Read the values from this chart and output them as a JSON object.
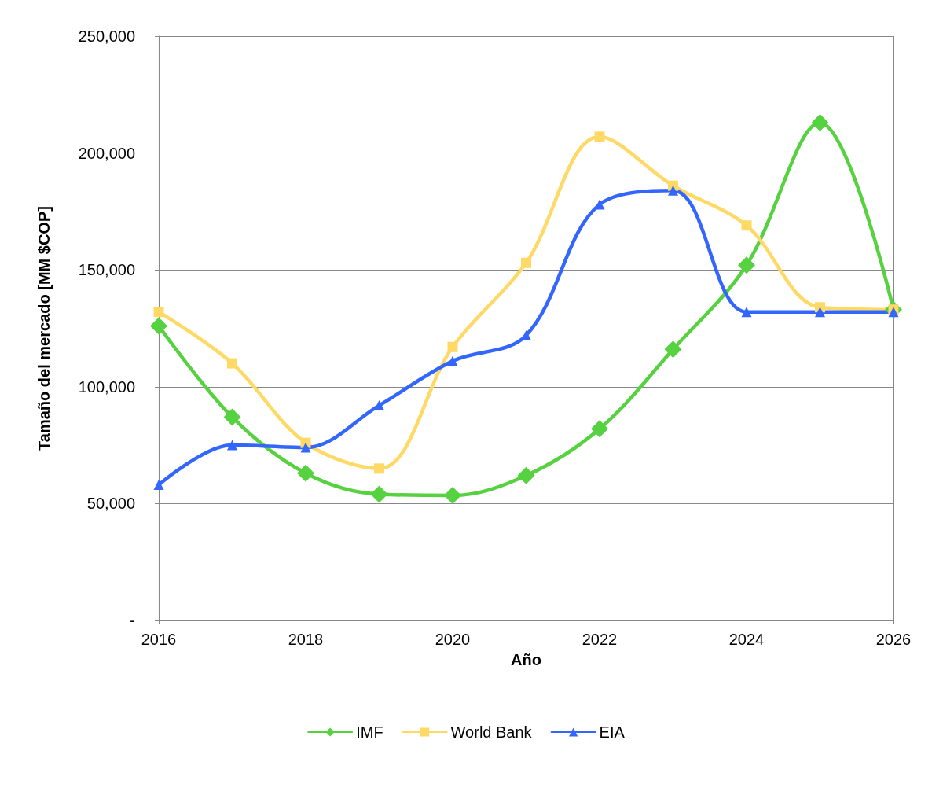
{
  "chart_data": {
    "type": "line",
    "xlabel": "Año",
    "ylabel": "Tamaño del mercado [MM $COP]",
    "x": [
      2016,
      2017,
      2018,
      2019,
      2020,
      2021,
      2022,
      2023,
      2024,
      2025,
      2026
    ],
    "xlim": [
      2016,
      2026
    ],
    "xticks": [
      2016,
      2018,
      2020,
      2022,
      2024,
      2026
    ],
    "ylim": [
      0,
      250000
    ],
    "yticks": [
      {
        "value": 0,
        "label": "-"
      },
      {
        "value": 50000,
        "label": "50,000"
      },
      {
        "value": 100000,
        "label": "100,000"
      },
      {
        "value": 150000,
        "label": "150,000"
      },
      {
        "value": 200000,
        "label": "200,000"
      },
      {
        "value": 250000,
        "label": "250,000"
      }
    ],
    "grid": true,
    "legend": "bottom",
    "line_style": "solid",
    "series": [
      {
        "name": "IMF",
        "color": "#56d13f",
        "marker": "diamond",
        "values": [
          126000,
          87000,
          63000,
          54000,
          53500,
          62000,
          82000,
          116000,
          152000,
          213000,
          133000
        ]
      },
      {
        "name": "World Bank",
        "color": "#ffd966",
        "marker": "square",
        "values": [
          132000,
          110000,
          76000,
          65000,
          117000,
          153000,
          207000,
          186000,
          169000,
          134000,
          133000
        ]
      },
      {
        "name": "EIA",
        "color": "#3366ff",
        "marker": "triangle",
        "values": [
          58000,
          75000,
          74000,
          92000,
          111000,
          122000,
          178000,
          184000,
          132000,
          132000,
          132000
        ]
      }
    ]
  }
}
